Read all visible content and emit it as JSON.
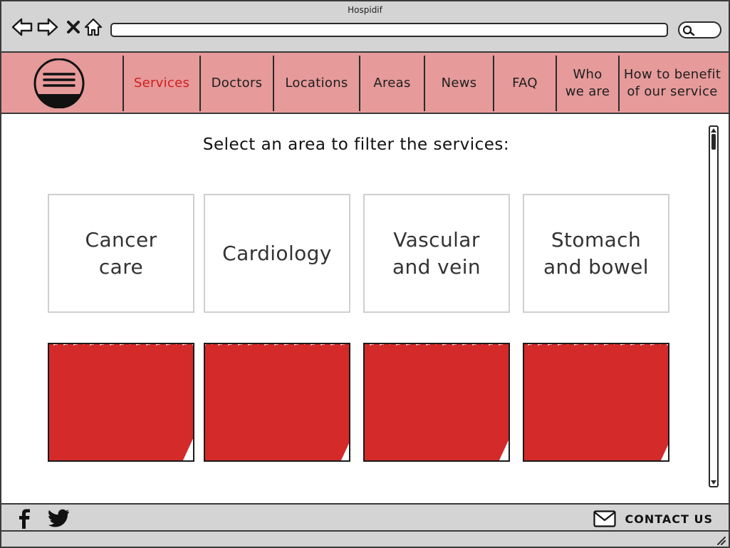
{
  "window": {
    "title": "Hospidif"
  },
  "browser": {
    "back_icon": "back-arrow-icon",
    "forward_icon": "forward-arrow-icon",
    "stop_icon": "close-icon",
    "home_icon": "home-icon",
    "search_icon": "search-icon",
    "url_value": ""
  },
  "nav": {
    "menu_icon": "hamburger-menu-icon",
    "items": [
      {
        "label": "Services",
        "active": true
      },
      {
        "label": "Doctors",
        "active": false
      },
      {
        "label": "Locations",
        "active": false
      },
      {
        "label": "Areas",
        "active": false
      },
      {
        "label": "News",
        "active": false
      },
      {
        "label": "FAQ",
        "active": false
      },
      {
        "label": "Who\nwe are",
        "active": false
      },
      {
        "label": "How to benefit\nof our service",
        "active": false
      }
    ]
  },
  "main": {
    "prompt": "Select an area to filter the services:",
    "areas": [
      {
        "label": "Cancer\ncare"
      },
      {
        "label": "Cardiology"
      },
      {
        "label": "Vascular\nand vein"
      },
      {
        "label": "Stomach\nand bowel"
      }
    ]
  },
  "footer": {
    "facebook_icon": "facebook-icon",
    "twitter_icon": "twitter-icon",
    "contact_icon": "envelope-icon",
    "contact_label": "CONTACT US"
  },
  "colors": {
    "nav_background": "#e69a9a",
    "active_nav": "#d01e1e",
    "image_scribble": "#d42a2a",
    "chrome_background": "#d4d4d4"
  }
}
